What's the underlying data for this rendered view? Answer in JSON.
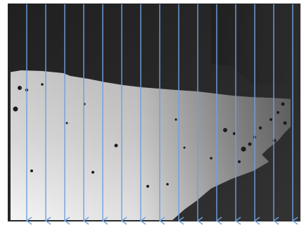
{
  "figure": {
    "kind": "depth-map-with-ray-overlay",
    "background_color": "#ffffff",
    "depth_near_color": "#ffffff",
    "depth_far_color": "#2b2b2b",
    "arrow_color": "#6ea0e0",
    "arrow_direction": "down",
    "arrow_count": 16
  }
}
